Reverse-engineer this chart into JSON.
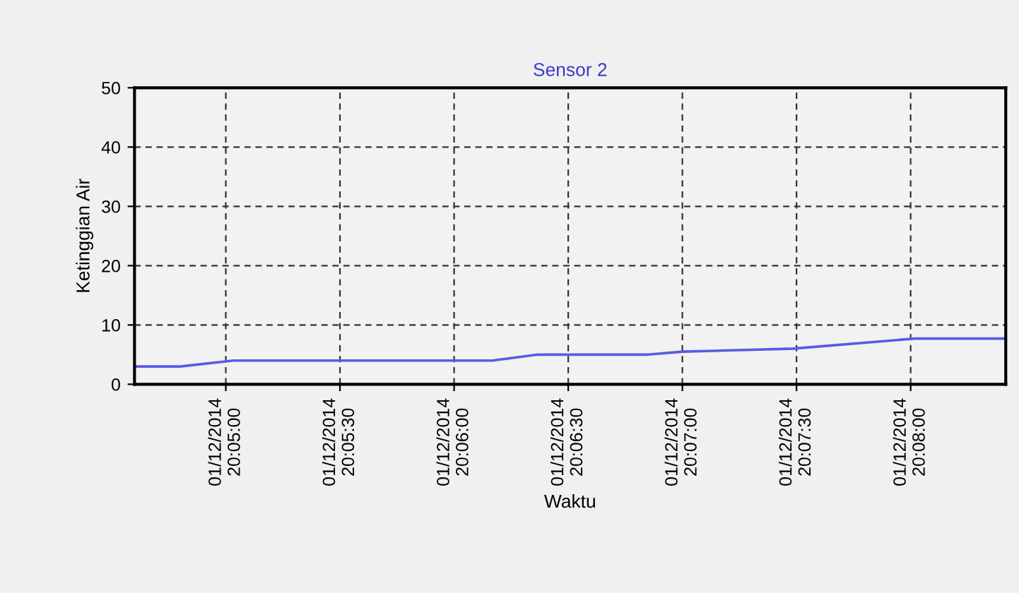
{
  "chart_data": {
    "type": "line",
    "title": "Sensor 2",
    "xlabel": "Waktu",
    "ylabel": "Ketinggian Air",
    "series": [
      {
        "color": "#5a5ae6",
        "x": [
          "2014-12-01T20:04:36",
          "2014-12-01T20:04:48",
          "2014-12-01T20:05:02",
          "2014-12-01T20:06:10",
          "2014-12-01T20:06:22",
          "2014-12-01T20:06:51",
          "2014-12-01T20:07:00",
          "2014-12-01T20:07:29",
          "2014-12-01T20:08:01",
          "2014-12-01T20:08:25"
        ],
        "values": [
          3,
          3,
          4,
          4,
          5,
          5,
          5.5,
          6,
          7.7,
          7.7
        ]
      }
    ],
    "xlim": [
      "2014-12-01T20:04:36",
      "2014-12-01T20:08:25"
    ],
    "xticks": [
      {
        "value": "2014-12-01T20:05:00",
        "label": "01/12/2014\n20:05:00"
      },
      {
        "value": "2014-12-01T20:05:30",
        "label": "01/12/2014\n20:05:30"
      },
      {
        "value": "2014-12-01T20:06:00",
        "label": "01/12/2014\n20:06:00"
      },
      {
        "value": "2014-12-01T20:06:30",
        "label": "01/12/2014\n20:06:30"
      },
      {
        "value": "2014-12-01T20:07:00",
        "label": "01/12/2014\n20:07:00"
      },
      {
        "value": "2014-12-01T20:07:30",
        "label": "01/12/2014\n20:07:30"
      },
      {
        "value": "2014-12-01T20:08:00",
        "label": "01/12/2014\n20:08:00"
      }
    ],
    "ylim": [
      0,
      50
    ],
    "yticks": [
      0,
      10,
      20,
      30,
      40,
      50
    ],
    "grid": true,
    "legend": false,
    "marker": "none",
    "line_style": "solid"
  }
}
